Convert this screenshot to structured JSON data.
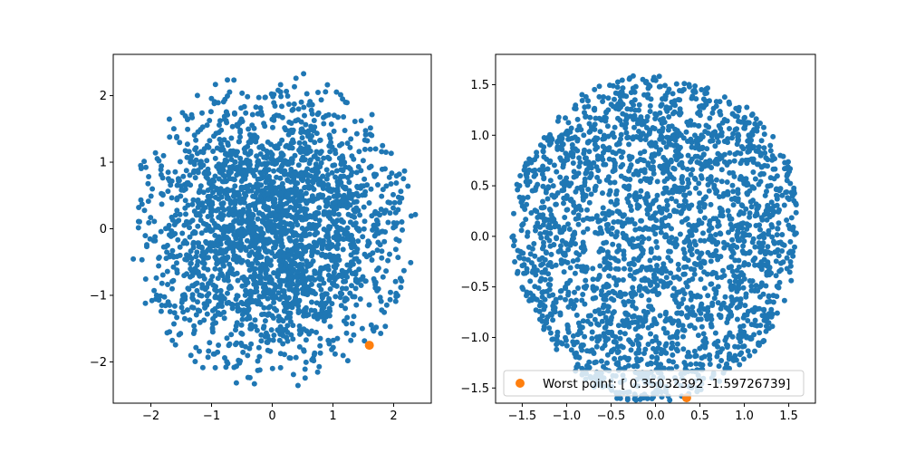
{
  "chart_data": [
    {
      "type": "scatter",
      "title": "",
      "xlabel": "",
      "ylabel": "",
      "xlim": [
        -2.62,
        2.62
      ],
      "ylim": [
        -2.62,
        2.62
      ],
      "xticks": [
        "−2",
        "−1",
        "0",
        "1",
        "2"
      ],
      "yticks": [
        "−2",
        "−1",
        "0",
        "1",
        "2"
      ],
      "xtick_values": [
        -2,
        -1,
        0,
        1,
        2
      ],
      "ytick_values": [
        -2,
        -1,
        0,
        1,
        2
      ],
      "grid": false,
      "colors": {
        "points": "#1f77b4",
        "highlight": "#ff7f0e"
      },
      "series": [
        {
          "distribution": "gaussian-in-disk",
          "center": [
            0,
            0
          ],
          "radius": 2.4,
          "sigma": 1.05,
          "n_points": 2500
        },
        {
          "points": [
            [
              1.6,
              -1.75
            ]
          ]
        }
      ]
    },
    {
      "type": "scatter",
      "title": "",
      "xlabel": "",
      "ylabel": "",
      "xlim": [
        -1.8,
        1.8
      ],
      "ylim": [
        -1.65,
        1.8
      ],
      "xticks": [
        "−1.5",
        "−1.0",
        "−0.5",
        "0.0",
        "0.5",
        "1.0",
        "1.5"
      ],
      "yticks": [
        "−1.5",
        "−1.0",
        "−0.5",
        "0.0",
        "0.5",
        "1.0",
        "1.5"
      ],
      "xtick_values": [
        -1.5,
        -1.0,
        -0.5,
        0.0,
        0.5,
        1.0,
        1.5
      ],
      "ytick_values": [
        -1.5,
        -1.0,
        -0.5,
        0.0,
        0.5,
        1.0,
        1.5
      ],
      "grid": false,
      "legend_position": "lower-center",
      "colors": {
        "points": "#1f77b4",
        "highlight": "#ff7f0e"
      },
      "series": [
        {
          "distribution": "uniform-in-disk",
          "center": [
            0,
            0
          ],
          "radius": 1.62,
          "n_points": 2500
        },
        {
          "name": "Worst point: [ 0.35032392 -1.59726739]",
          "points": [
            [
              0.35032392,
              -1.59726739
            ]
          ]
        }
      ]
    }
  ]
}
